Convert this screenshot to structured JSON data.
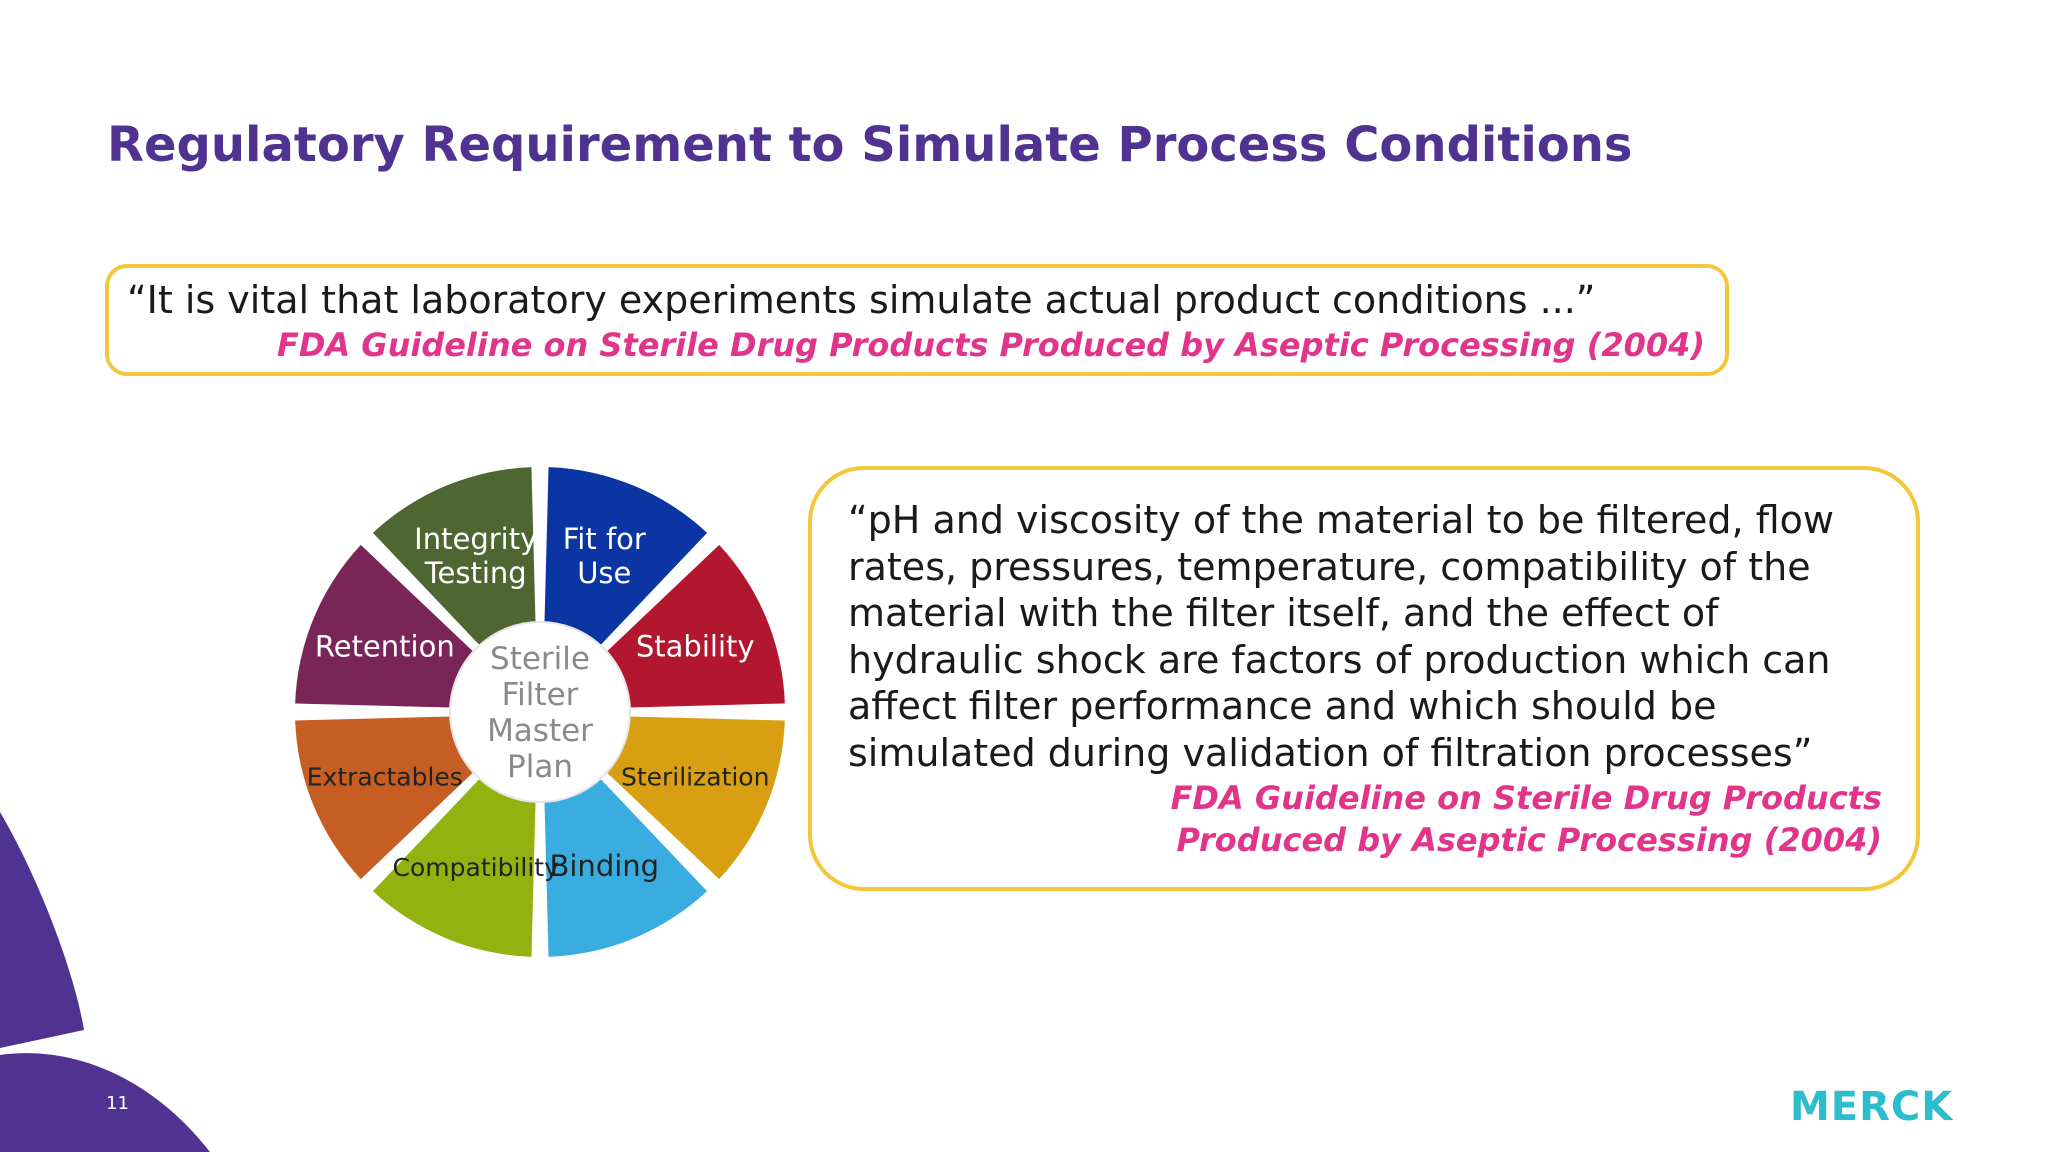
{
  "slide": {
    "title": "Regulatory Requirement to Simulate Process Conditions",
    "page_number": "11",
    "logo_text": "MERCK"
  },
  "quote1": {
    "text": "“It is vital that laboratory experiments simulate actual product conditions ...”",
    "source": "FDA Guideline on Sterile Drug Products Produced by Aseptic Processing (2004)"
  },
  "quote2": {
    "lines": [
      "“pH and viscosity of the material to be filtered, flow",
      "rates, pressures, temperature, compatibility of the",
      "material with the filter itself, and the effect of",
      "hydraulic shock are factors of production which can",
      "affect filter performance and which should be",
      "simulated during validation of filtration processes”"
    ],
    "source_lines": [
      "FDA Guideline on Sterile Drug Products",
      "Produced by Aseptic Processing (2004)"
    ]
  },
  "wheel": {
    "center_lines": [
      "Sterile",
      "Filter",
      "Master",
      "Plan"
    ],
    "segments": [
      {
        "lines": [
          "Fit for",
          "Use"
        ],
        "color": "#0b35a3",
        "text_color": "#ffffff"
      },
      {
        "lines": [
          "Stability"
        ],
        "color": "#b3172f",
        "text_color": "#ffffff"
      },
      {
        "lines": [
          "Sterilization"
        ],
        "color": "#d89f12",
        "text_color": "#222222"
      },
      {
        "lines": [
          "Binding"
        ],
        "color": "#39ade0",
        "text_color": "#222222"
      },
      {
        "lines": [
          "Compatibility"
        ],
        "color": "#93b20f",
        "text_color": "#222222"
      },
      {
        "lines": [
          "Extractables"
        ],
        "color": "#c65d23",
        "text_color": "#222222"
      },
      {
        "lines": [
          "Retention"
        ],
        "color": "#7a2558",
        "text_color": "#ffffff"
      },
      {
        "lines": [
          "Integrity",
          "Testing"
        ],
        "color": "#4e6732",
        "text_color": "#ffffff"
      }
    ]
  },
  "colors": {
    "title": "#503291",
    "citation": "#e0358b",
    "box_border": "#f3c73c",
    "deco_purple": "#503291",
    "logo": "#2dbecd"
  }
}
